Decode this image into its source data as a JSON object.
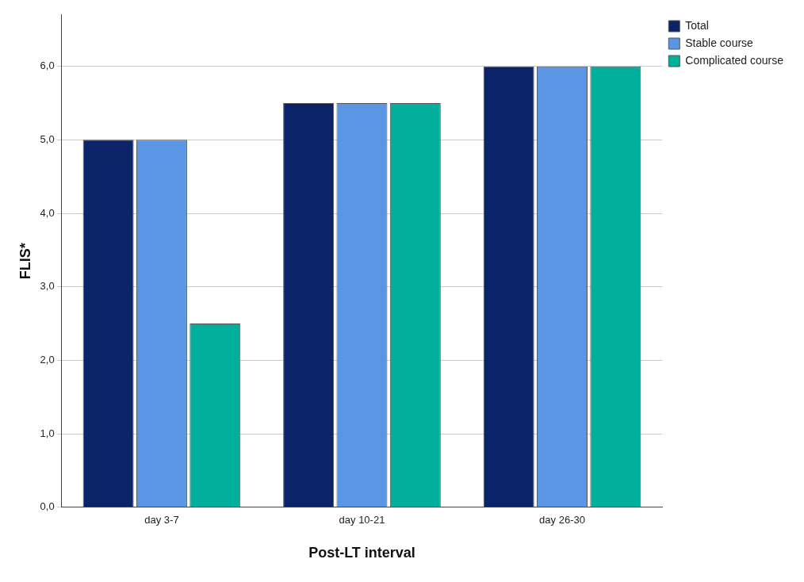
{
  "chart_data": {
    "type": "bar",
    "xlabel": "Post-LT interval",
    "ylabel": "FLIS*",
    "categories": [
      "day 3-7",
      "day 10-21",
      "day 26-30"
    ],
    "series": [
      {
        "name": "Total",
        "color": "#0b2469",
        "values": [
          5.0,
          5.5,
          6.0
        ]
      },
      {
        "name": "Stable course",
        "color": "#5b96e4",
        "values": [
          5.0,
          5.5,
          6.0
        ]
      },
      {
        "name": "Complicated course",
        "color": "#00b09c",
        "values": [
          2.5,
          5.5,
          6.0
        ]
      }
    ],
    "ylim": [
      0,
      6.7
    ],
    "yticks": [
      {
        "value": 0,
        "label": "0,0"
      },
      {
        "value": 1,
        "label": "1,0"
      },
      {
        "value": 2,
        "label": "2,0"
      },
      {
        "value": 3,
        "label": "3,0"
      },
      {
        "value": 4,
        "label": "4,0"
      },
      {
        "value": 5,
        "label": "5,0"
      },
      {
        "value": 6,
        "label": "6,0"
      }
    ],
    "grid": "y",
    "legend": "top right"
  }
}
